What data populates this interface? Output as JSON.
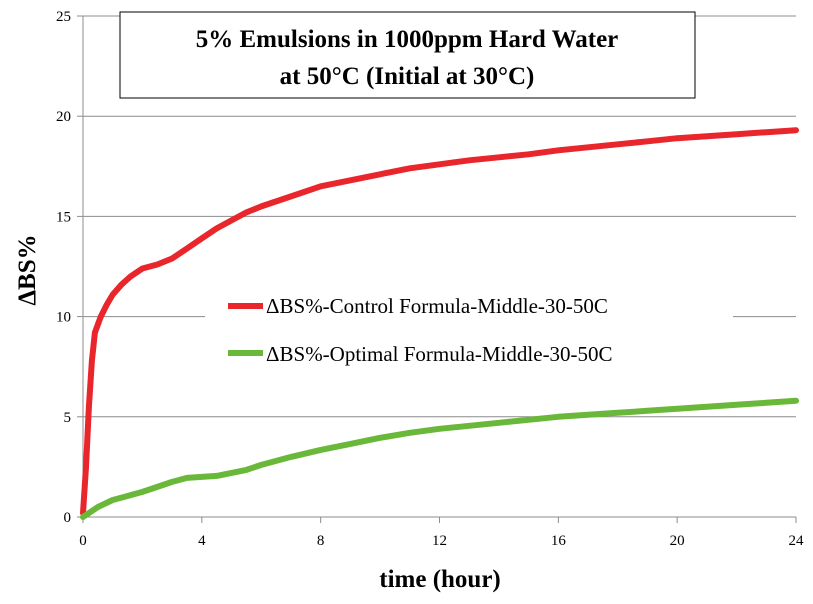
{
  "chart_data": {
    "type": "line",
    "title_line1": "5% Emulsions in 1000ppm Hard Water",
    "title_line2": "at 50°C (Initial at 30°C)",
    "xlabel": "time (hour)",
    "ylabel": "ΔBS%",
    "xlim": [
      0,
      24
    ],
    "ylim": [
      0,
      25
    ],
    "x_ticks": [
      "0",
      "4",
      "8",
      "12",
      "16",
      "20",
      "24"
    ],
    "y_ticks": [
      "0",
      "5",
      "10",
      "15",
      "20",
      "25"
    ],
    "grid": "horizontal",
    "legend_position": "center-right",
    "series": [
      {
        "name": "ΔBS%-Control Formula-Middle-30-50C",
        "color": "#e8262b",
        "points": [
          [
            0,
            0.2
          ],
          [
            0.1,
            2.5
          ],
          [
            0.2,
            5.5
          ],
          [
            0.3,
            7.8
          ],
          [
            0.4,
            9.2
          ],
          [
            0.6,
            10.0
          ],
          [
            0.8,
            10.6
          ],
          [
            1.0,
            11.1
          ],
          [
            1.3,
            11.6
          ],
          [
            1.6,
            12.0
          ],
          [
            2.0,
            12.4
          ],
          [
            2.5,
            12.6
          ],
          [
            3.0,
            12.9
          ],
          [
            3.5,
            13.4
          ],
          [
            4.0,
            13.9
          ],
          [
            4.5,
            14.4
          ],
          [
            5.0,
            14.8
          ],
          [
            5.5,
            15.2
          ],
          [
            6.0,
            15.5
          ],
          [
            7.0,
            16.0
          ],
          [
            8.0,
            16.5
          ],
          [
            9.0,
            16.8
          ],
          [
            10.0,
            17.1
          ],
          [
            11.0,
            17.4
          ],
          [
            12.0,
            17.6
          ],
          [
            13.0,
            17.8
          ],
          [
            14.0,
            17.95
          ],
          [
            15.0,
            18.1
          ],
          [
            16.0,
            18.3
          ],
          [
            17.0,
            18.45
          ],
          [
            18.0,
            18.6
          ],
          [
            19.0,
            18.75
          ],
          [
            20.0,
            18.9
          ],
          [
            21.0,
            19.0
          ],
          [
            22.0,
            19.1
          ],
          [
            23.0,
            19.2
          ],
          [
            24.0,
            19.3
          ]
        ]
      },
      {
        "name": "ΔBS%-Optimal Formula-Middle-30-50C",
        "color": "#6ab83a",
        "points": [
          [
            0,
            0.0
          ],
          [
            0.5,
            0.5
          ],
          [
            1.0,
            0.85
          ],
          [
            1.5,
            1.05
          ],
          [
            2.0,
            1.25
          ],
          [
            2.5,
            1.5
          ],
          [
            3.0,
            1.75
          ],
          [
            3.5,
            1.95
          ],
          [
            4.0,
            2.0
          ],
          [
            4.5,
            2.05
          ],
          [
            5.0,
            2.2
          ],
          [
            5.5,
            2.35
          ],
          [
            6.0,
            2.6
          ],
          [
            7.0,
            3.0
          ],
          [
            8.0,
            3.35
          ],
          [
            9.0,
            3.65
          ],
          [
            10.0,
            3.95
          ],
          [
            11.0,
            4.2
          ],
          [
            12.0,
            4.4
          ],
          [
            13.0,
            4.55
          ],
          [
            14.0,
            4.7
          ],
          [
            15.0,
            4.85
          ],
          [
            16.0,
            5.0
          ],
          [
            17.0,
            5.1
          ],
          [
            18.0,
            5.2
          ],
          [
            19.0,
            5.3
          ],
          [
            20.0,
            5.4
          ],
          [
            21.0,
            5.5
          ],
          [
            22.0,
            5.6
          ],
          [
            23.0,
            5.7
          ],
          [
            24.0,
            5.8
          ]
        ]
      }
    ]
  }
}
